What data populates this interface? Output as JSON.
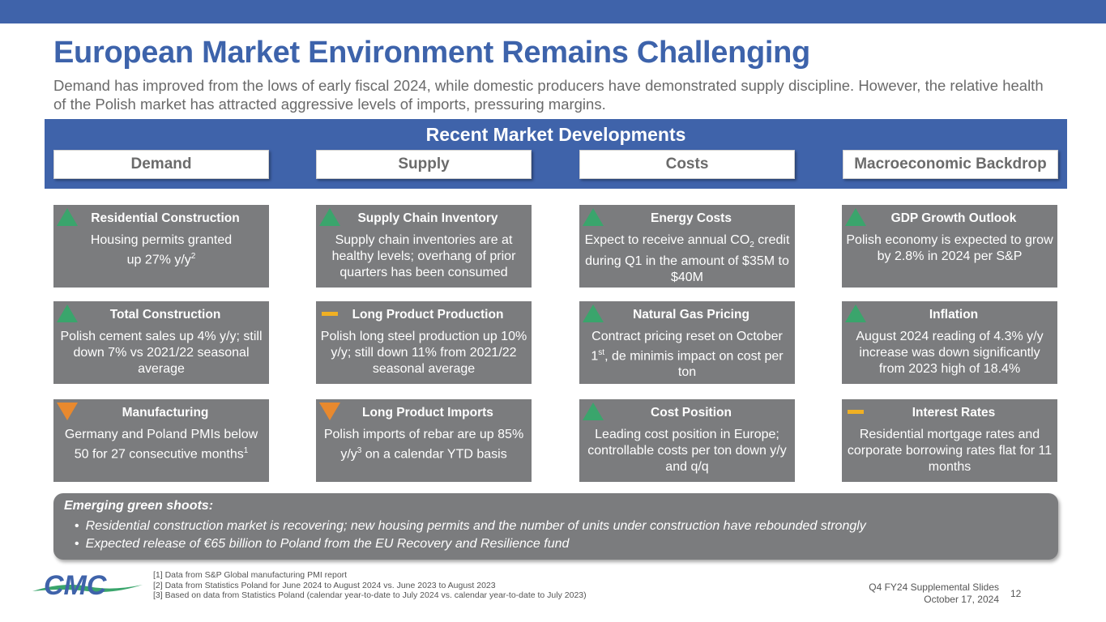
{
  "title": "European Market Environment Remains Challenging",
  "subtitle": "Demand has improved from the lows of early fiscal 2024, while domestic producers have demonstrated supply discipline.  However, the relative health of the Polish market has attracted aggressive levels of imports, pressuring margins.",
  "section_title": "Recent Market Developments",
  "columns": [
    "Demand",
    "Supply",
    "Costs",
    "Macroeconomic Backdrop"
  ],
  "indicator_colors": {
    "up": "#3aa56c",
    "down": "#e8892e",
    "flat": "#f0b023"
  },
  "cards": {
    "demand": [
      {
        "title": "Residential Construction",
        "indicator": "up",
        "body": "Housing permits granted",
        "body2": "up 27% y/y",
        "sup": "2"
      },
      {
        "title": "Total Construction",
        "indicator": "up",
        "body": "Polish cement sales up 4% y/y; still down 7% vs 2021/22 seasonal average"
      },
      {
        "title": "Manufacturing",
        "indicator": "down",
        "body": "Germany and Poland PMIs below 50 for 27 consecutive months",
        "sup": "1"
      }
    ],
    "supply": [
      {
        "title": "Supply Chain Inventory",
        "indicator": "up",
        "body": "Supply chain inventories are at healthy levels; overhang of prior quarters has been consumed"
      },
      {
        "title": "Long Product Production",
        "indicator": "flat",
        "body": "Polish long steel production up 10% y/y; still down 11% from 2021/22 seasonal average"
      },
      {
        "title": "Long Product Imports",
        "indicator": "down",
        "body_pre": "Polish imports of rebar are up 85% y/y",
        "sup": "3",
        "body_post": "  on a calendar YTD basis"
      }
    ],
    "costs": [
      {
        "title": "Energy Costs",
        "indicator": "up",
        "body_pre": "Expect to receive annual CO",
        "sub": "2",
        "body_post": " credit during Q1 in the amount of $35M to $40M"
      },
      {
        "title": "Natural Gas Pricing",
        "indicator": "up",
        "body_pre": "Contract pricing reset on October 1",
        "sup": "st",
        "body_post": ", de minimis impact on cost per ton"
      },
      {
        "title": "Cost Position",
        "indicator": "up",
        "body": "Leading cost position in Europe; controllable costs per ton down y/y and q/q"
      }
    ],
    "macro": [
      {
        "title": "GDP Growth Outlook",
        "indicator": "up",
        "body": "Polish economy is expected to grow by 2.8% in 2024 per S&P"
      },
      {
        "title": "Inflation",
        "indicator": "up",
        "body": "August 2024 reading of 4.3% y/y increase was down significantly from 2023 high of 18.4%"
      },
      {
        "title": "Interest Rates",
        "indicator": "flat",
        "body": "Residential mortgage rates and corporate borrowing rates flat for 11 months"
      }
    ]
  },
  "green_shoots": {
    "title": "Emerging green shoots:",
    "items": [
      "Residential construction market is recovering; new housing permits and the number of units under construction have rebounded strongly",
      "Expected release of €65 billion to Poland from the EU Recovery and Resilience fund"
    ]
  },
  "footnotes": [
    "[1] Data from S&P Global manufacturing PMI report",
    "[2] Data from Statistics Poland for June 2024 to August 2024 vs. June 2023 to August 2023",
    "[3] Based on data from Statistics Poland (calendar year-to-date to July 2024 vs. calendar year-to-date to July 2023)"
  ],
  "footer": {
    "line1": "Q4 FY24 Supplemental Slides",
    "line2": "October 17, 2024",
    "page": "12"
  },
  "logo": {
    "text": "CMC",
    "name": "cmc-logo"
  }
}
